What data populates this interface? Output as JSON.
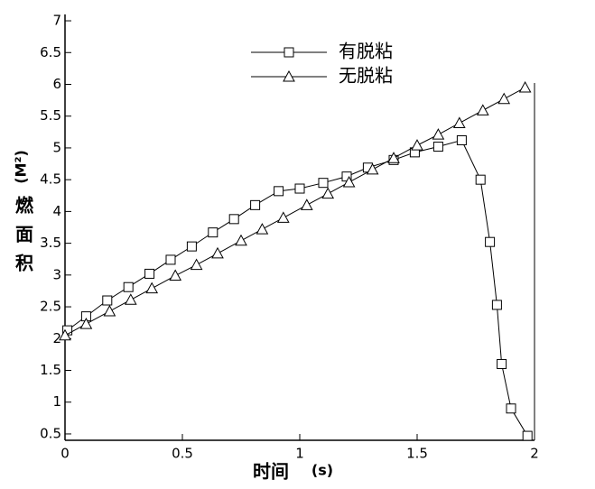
{
  "chart_data": {
    "type": "line",
    "x_label": "时间",
    "x_label_unit": "(s)",
    "y_label": "燃面积",
    "y_label_unit": "(M²)",
    "xlim": [
      0,
      2
    ],
    "xticks": [
      0,
      0.5,
      1,
      1.5,
      2
    ],
    "ylim": [
      0.4,
      7.1
    ],
    "yticks": [
      0.5,
      1,
      1.5,
      2,
      2.5,
      3,
      3.5,
      4,
      4.5,
      5,
      5.5,
      6,
      6.5,
      7
    ],
    "grid": false,
    "legend": "top",
    "series": [
      {
        "name": "有脱粘",
        "color": "#000000",
        "marker": "square",
        "x": [
          0.01,
          0.09,
          0.18,
          0.27,
          0.36,
          0.45,
          0.54,
          0.63,
          0.72,
          0.81,
          0.91,
          1.0,
          1.1,
          1.2,
          1.29,
          1.4,
          1.49,
          1.59,
          1.69,
          1.77,
          1.81,
          1.84,
          1.86,
          1.9,
          1.97
        ],
        "values": [
          2.13,
          2.35,
          2.6,
          2.81,
          3.02,
          3.24,
          3.45,
          3.67,
          3.88,
          4.1,
          4.32,
          4.36,
          4.45,
          4.55,
          4.69,
          4.81,
          4.93,
          5.02,
          5.12,
          4.5,
          3.52,
          2.53,
          1.6,
          0.9,
          0.47
        ]
      },
      {
        "name": "无脱粘",
        "color": "#000000",
        "marker": "triangle",
        "x": [
          0,
          0.09,
          0.19,
          0.28,
          0.37,
          0.47,
          0.56,
          0.65,
          0.75,
          0.84,
          0.93,
          1.03,
          1.12,
          1.21,
          1.31,
          1.4,
          1.5,
          1.59,
          1.68,
          1.78,
          1.87,
          1.96
        ],
        "values": [
          2.05,
          2.23,
          2.43,
          2.61,
          2.79,
          2.99,
          3.16,
          3.34,
          3.54,
          3.72,
          3.9,
          4.1,
          4.28,
          4.46,
          4.66,
          4.84,
          5.04,
          5.21,
          5.39,
          5.59,
          5.77,
          5.95
        ]
      }
    ]
  }
}
